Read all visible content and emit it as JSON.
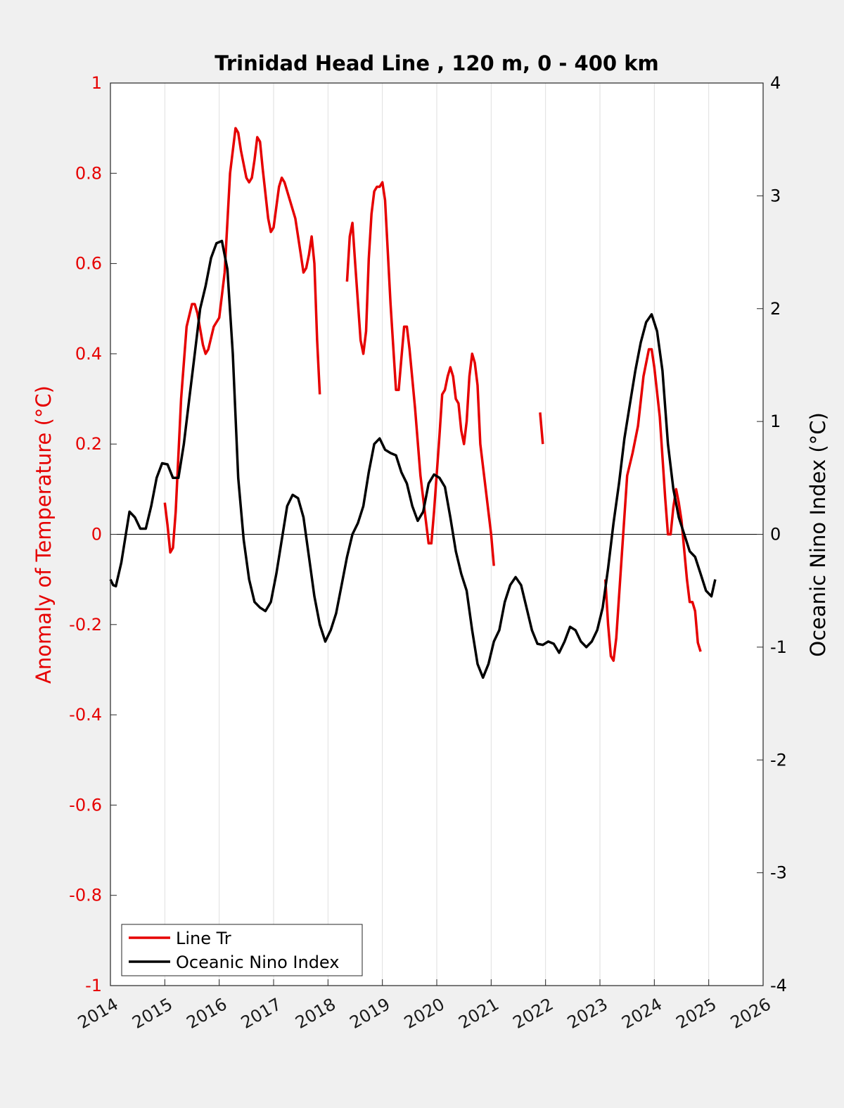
{
  "chart_data": {
    "type": "line",
    "title": "Trinidad Head Line , 120 m, 0 - 400 km",
    "ylabel": "Anomaly of Temperature (°C)",
    "ylabel_right": "Oceanic Nino Index (°C)",
    "xlim": [
      2014,
      2026
    ],
    "ylim": [
      -1,
      1
    ],
    "ylim_right": [
      -4,
      4
    ],
    "x_ticks": [
      2014,
      2015,
      2016,
      2017,
      2018,
      2019,
      2020,
      2021,
      2022,
      2023,
      2024,
      2025,
      2026
    ],
    "y_ticks_left": [
      "-1",
      "-0.8",
      "-0.6",
      "-0.4",
      "-0.2",
      "0",
      "0.2",
      "0.4",
      "0.6",
      "0.8",
      "1"
    ],
    "y_ticks_right": [
      "-4",
      "-3",
      "-2",
      "-1",
      "0",
      "1",
      "2",
      "3",
      "4"
    ],
    "grid": "vertical",
    "legend_position": "bottom-left",
    "colors": {
      "line_tr": "#e60000",
      "oni": "#000000"
    },
    "series": [
      {
        "name": "Line Tr",
        "axis": "left",
        "segments": [
          [
            [
              2015.0,
              0.07
            ],
            [
              2015.05,
              0.02
            ],
            [
              2015.1,
              -0.04
            ],
            [
              2015.15,
              -0.03
            ],
            [
              2015.2,
              0.05
            ],
            [
              2015.3,
              0.3
            ],
            [
              2015.4,
              0.46
            ],
            [
              2015.5,
              0.51
            ],
            [
              2015.55,
              0.51
            ],
            [
              2015.6,
              0.49
            ],
            [
              2015.7,
              0.42
            ],
            [
              2015.75,
              0.4
            ],
            [
              2015.8,
              0.41
            ],
            [
              2015.9,
              0.46
            ],
            [
              2016.0,
              0.48
            ],
            [
              2016.1,
              0.58
            ],
            [
              2016.2,
              0.8
            ],
            [
              2016.3,
              0.9
            ],
            [
              2016.35,
              0.89
            ],
            [
              2016.4,
              0.85
            ],
            [
              2016.5,
              0.79
            ],
            [
              2016.55,
              0.78
            ],
            [
              2016.6,
              0.79
            ],
            [
              2016.65,
              0.83
            ],
            [
              2016.7,
              0.88
            ],
            [
              2016.75,
              0.87
            ],
            [
              2016.8,
              0.81
            ],
            [
              2016.9,
              0.7
            ],
            [
              2016.95,
              0.67
            ],
            [
              2017.0,
              0.68
            ],
            [
              2017.1,
              0.77
            ],
            [
              2017.15,
              0.79
            ],
            [
              2017.2,
              0.78
            ],
            [
              2017.3,
              0.74
            ],
            [
              2017.4,
              0.7
            ],
            [
              2017.5,
              0.62
            ],
            [
              2017.55,
              0.58
            ],
            [
              2017.6,
              0.59
            ],
            [
              2017.65,
              0.62
            ],
            [
              2017.7,
              0.66
            ],
            [
              2017.75,
              0.6
            ],
            [
              2017.8,
              0.43
            ],
            [
              2017.85,
              0.31
            ]
          ],
          [
            [
              2018.35,
              0.56
            ],
            [
              2018.4,
              0.66
            ],
            [
              2018.45,
              0.69
            ],
            [
              2018.5,
              0.6
            ],
            [
              2018.6,
              0.43
            ],
            [
              2018.65,
              0.4
            ],
            [
              2018.7,
              0.45
            ],
            [
              2018.75,
              0.61
            ],
            [
              2018.8,
              0.71
            ],
            [
              2018.85,
              0.76
            ],
            [
              2018.9,
              0.77
            ],
            [
              2018.95,
              0.77
            ],
            [
              2019.0,
              0.78
            ],
            [
              2019.05,
              0.74
            ],
            [
              2019.15,
              0.51
            ],
            [
              2019.25,
              0.32
            ],
            [
              2019.3,
              0.32
            ],
            [
              2019.35,
              0.39
            ],
            [
              2019.4,
              0.46
            ],
            [
              2019.45,
              0.46
            ],
            [
              2019.5,
              0.41
            ],
            [
              2019.6,
              0.28
            ],
            [
              2019.7,
              0.13
            ],
            [
              2019.8,
              0.03
            ],
            [
              2019.85,
              -0.02
            ],
            [
              2019.9,
              -0.02
            ],
            [
              2019.95,
              0.05
            ],
            [
              2020.05,
              0.22
            ],
            [
              2020.1,
              0.31
            ],
            [
              2020.15,
              0.32
            ],
            [
              2020.2,
              0.35
            ],
            [
              2020.25,
              0.37
            ],
            [
              2020.3,
              0.35
            ],
            [
              2020.35,
              0.3
            ],
            [
              2020.4,
              0.29
            ],
            [
              2020.45,
              0.23
            ],
            [
              2020.5,
              0.2
            ],
            [
              2020.55,
              0.25
            ],
            [
              2020.6,
              0.35
            ],
            [
              2020.65,
              0.4
            ],
            [
              2020.7,
              0.38
            ],
            [
              2020.75,
              0.33
            ],
            [
              2020.8,
              0.2
            ],
            [
              2020.9,
              0.1
            ],
            [
              2021.0,
              0.0
            ],
            [
              2021.05,
              -0.07
            ]
          ],
          [
            [
              2021.9,
              0.27
            ],
            [
              2021.95,
              0.2
            ]
          ],
          [
            [
              2023.1,
              -0.1
            ],
            [
              2023.15,
              -0.2
            ],
            [
              2023.2,
              -0.27
            ],
            [
              2023.25,
              -0.28
            ],
            [
              2023.3,
              -0.23
            ],
            [
              2023.4,
              -0.05
            ],
            [
              2023.5,
              0.13
            ],
            [
              2023.6,
              0.18
            ],
            [
              2023.7,
              0.24
            ],
            [
              2023.8,
              0.35
            ],
            [
              2023.9,
              0.41
            ],
            [
              2023.95,
              0.41
            ],
            [
              2024.0,
              0.37
            ],
            [
              2024.1,
              0.26
            ],
            [
              2024.2,
              0.08
            ],
            [
              2024.25,
              0.0
            ],
            [
              2024.3,
              0.0
            ],
            [
              2024.35,
              0.06
            ],
            [
              2024.4,
              0.1
            ],
            [
              2024.45,
              0.07
            ],
            [
              2024.5,
              0.03
            ],
            [
              2024.6,
              -0.1
            ],
            [
              2024.65,
              -0.15
            ],
            [
              2024.7,
              -0.15
            ],
            [
              2024.75,
              -0.17
            ],
            [
              2024.8,
              -0.24
            ],
            [
              2024.85,
              -0.26
            ]
          ]
        ]
      },
      {
        "name": "Oceanic Nino Index",
        "axis": "right",
        "segments": [
          [
            [
              2014.0,
              -0.4
            ],
            [
              2014.05,
              -0.45
            ],
            [
              2014.1,
              -0.46
            ],
            [
              2014.2,
              -0.25
            ],
            [
              2014.3,
              0.05
            ],
            [
              2014.35,
              0.2
            ],
            [
              2014.45,
              0.15
            ],
            [
              2014.55,
              0.05
            ],
            [
              2014.65,
              0.05
            ],
            [
              2014.75,
              0.25
            ],
            [
              2014.85,
              0.5
            ],
            [
              2014.95,
              0.63
            ],
            [
              2015.05,
              0.62
            ],
            [
              2015.15,
              0.5
            ],
            [
              2015.25,
              0.5
            ],
            [
              2015.35,
              0.8
            ],
            [
              2015.45,
              1.2
            ],
            [
              2015.55,
              1.6
            ],
            [
              2015.65,
              2.0
            ],
            [
              2015.75,
              2.2
            ],
            [
              2015.85,
              2.45
            ],
            [
              2015.95,
              2.58
            ],
            [
              2016.05,
              2.6
            ],
            [
              2016.15,
              2.35
            ],
            [
              2016.25,
              1.6
            ],
            [
              2016.35,
              0.5
            ],
            [
              2016.45,
              -0.05
            ],
            [
              2016.55,
              -0.4
            ],
            [
              2016.65,
              -0.6
            ],
            [
              2016.75,
              -0.65
            ],
            [
              2016.85,
              -0.68
            ],
            [
              2016.95,
              -0.6
            ],
            [
              2017.05,
              -0.35
            ],
            [
              2017.15,
              -0.05
            ],
            [
              2017.25,
              0.25
            ],
            [
              2017.35,
              0.35
            ],
            [
              2017.45,
              0.32
            ],
            [
              2017.55,
              0.15
            ],
            [
              2017.65,
              -0.2
            ],
            [
              2017.75,
              -0.55
            ],
            [
              2017.85,
              -0.8
            ],
            [
              2017.95,
              -0.95
            ],
            [
              2018.05,
              -0.85
            ],
            [
              2018.15,
              -0.7
            ],
            [
              2018.25,
              -0.45
            ],
            [
              2018.35,
              -0.2
            ],
            [
              2018.45,
              0.0
            ],
            [
              2018.55,
              0.1
            ],
            [
              2018.65,
              0.25
            ],
            [
              2018.75,
              0.55
            ],
            [
              2018.85,
              0.8
            ],
            [
              2018.95,
              0.85
            ],
            [
              2019.05,
              0.75
            ],
            [
              2019.15,
              0.72
            ],
            [
              2019.25,
              0.7
            ],
            [
              2019.35,
              0.55
            ],
            [
              2019.45,
              0.45
            ],
            [
              2019.55,
              0.25
            ],
            [
              2019.65,
              0.12
            ],
            [
              2019.75,
              0.2
            ],
            [
              2019.85,
              0.45
            ],
            [
              2019.95,
              0.53
            ],
            [
              2020.05,
              0.5
            ],
            [
              2020.15,
              0.42
            ],
            [
              2020.25,
              0.15
            ],
            [
              2020.35,
              -0.15
            ],
            [
              2020.45,
              -0.35
            ],
            [
              2020.55,
              -0.5
            ],
            [
              2020.65,
              -0.85
            ],
            [
              2020.75,
              -1.15
            ],
            [
              2020.85,
              -1.27
            ],
            [
              2020.95,
              -1.15
            ],
            [
              2021.05,
              -0.95
            ],
            [
              2021.15,
              -0.85
            ],
            [
              2021.25,
              -0.6
            ],
            [
              2021.35,
              -0.45
            ],
            [
              2021.45,
              -0.38
            ],
            [
              2021.55,
              -0.45
            ],
            [
              2021.65,
              -0.65
            ],
            [
              2021.75,
              -0.85
            ],
            [
              2021.85,
              -0.97
            ],
            [
              2021.95,
              -0.98
            ],
            [
              2022.05,
              -0.95
            ],
            [
              2022.15,
              -0.97
            ],
            [
              2022.25,
              -1.05
            ],
            [
              2022.35,
              -0.95
            ],
            [
              2022.45,
              -0.82
            ],
            [
              2022.55,
              -0.85
            ],
            [
              2022.65,
              -0.95
            ],
            [
              2022.75,
              -1.0
            ],
            [
              2022.85,
              -0.95
            ],
            [
              2022.95,
              -0.85
            ],
            [
              2023.05,
              -0.65
            ],
            [
              2023.15,
              -0.3
            ],
            [
              2023.25,
              0.1
            ],
            [
              2023.35,
              0.45
            ],
            [
              2023.45,
              0.85
            ],
            [
              2023.55,
              1.15
            ],
            [
              2023.65,
              1.45
            ],
            [
              2023.75,
              1.7
            ],
            [
              2023.85,
              1.88
            ],
            [
              2023.95,
              1.95
            ],
            [
              2024.05,
              1.8
            ],
            [
              2024.15,
              1.45
            ],
            [
              2024.25,
              0.8
            ],
            [
              2024.35,
              0.4
            ],
            [
              2024.45,
              0.15
            ],
            [
              2024.55,
              0.0
            ],
            [
              2024.65,
              -0.15
            ],
            [
              2024.75,
              -0.2
            ],
            [
              2024.85,
              -0.35
            ],
            [
              2024.95,
              -0.5
            ],
            [
              2025.05,
              -0.55
            ],
            [
              2025.12,
              -0.4
            ]
          ]
        ]
      }
    ]
  }
}
